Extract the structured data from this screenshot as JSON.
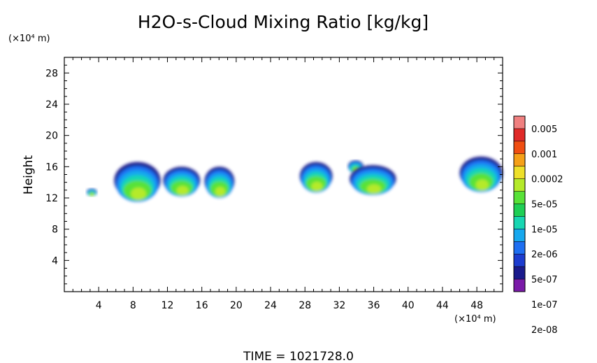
{
  "chart_data": {
    "type": "heatmap",
    "title": "H2O-s-Cloud Mixing Ratio [kg/kg]",
    "ylabel": "Height",
    "y_unit": "(×10⁴ m)",
    "x_unit": "(×10⁴ m)",
    "xlim": [
      0,
      51
    ],
    "ylim": [
      0,
      30
    ],
    "x_ticks": [
      "4",
      "8",
      "12",
      "16",
      "20",
      "24",
      "28",
      "32",
      "36",
      "40",
      "44",
      "48"
    ],
    "y_ticks": [
      "4",
      "8",
      "12",
      "16",
      "20",
      "24",
      "28"
    ],
    "colorbar_labels": [
      "0.005",
      "0.001",
      "0.0002",
      "5e-05",
      "1e-05",
      "2e-06",
      "5e-07",
      "1e-07",
      "2e-08"
    ],
    "colorbar_colors": [
      "#7a1aa8",
      "#1a1a8c",
      "#1c3ccf",
      "#1e6ff2",
      "#17a8ee",
      "#18d6b2",
      "#1fcf55",
      "#58e238",
      "#b5ea2a",
      "#eee02a",
      "#f5a018",
      "#f04e12",
      "#e02a28",
      "#f08080"
    ],
    "clouds": [
      {
        "x": [
          2.6,
          3.8
        ],
        "y": [
          12.1,
          13.2
        ],
        "level": 0.45
      },
      {
        "x": [
          5.8,
          11.2
        ],
        "y": [
          11.0,
          16.6
        ],
        "level": 0.5
      },
      {
        "x": [
          11.5,
          15.8
        ],
        "y": [
          11.8,
          16.0
        ],
        "level": 0.48
      },
      {
        "x": [
          16.3,
          19.8
        ],
        "y": [
          11.6,
          16.0
        ],
        "level": 0.52
      },
      {
        "x": [
          27.4,
          31.2
        ],
        "y": [
          12.3,
          16.6
        ],
        "level": 0.55
      },
      {
        "x": [
          33.0,
          34.8
        ],
        "y": [
          15.0,
          16.8
        ],
        "level": 0.2
      },
      {
        "x": [
          33.2,
          38.6
        ],
        "y": [
          12.0,
          16.2
        ],
        "level": 0.42
      },
      {
        "x": [
          46.0,
          51.0
        ],
        "y": [
          12.3,
          17.3
        ],
        "level": 0.4
      }
    ]
  },
  "footer": {
    "time_label": "TIME =  1021728.0"
  }
}
